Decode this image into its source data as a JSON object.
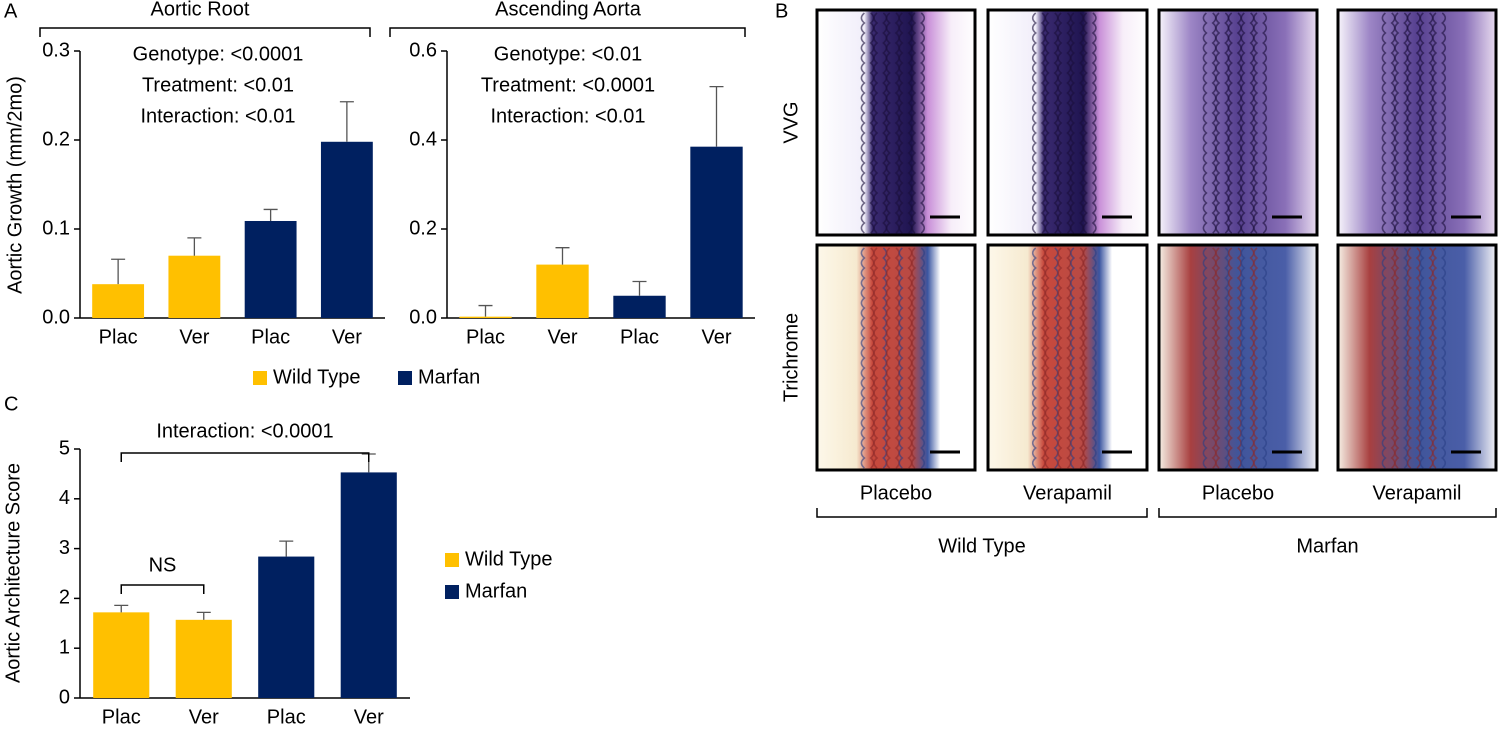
{
  "panel_labels": [
    "A",
    "B",
    "C"
  ],
  "chart_data": [
    {
      "type": "bar",
      "title": "Aortic Root",
      "ylabel": "Aortic Growth (mm/2mo)",
      "annotations": [
        "Genotype: <0.0001",
        "Treatment: <0.01",
        "Interaction: <0.01"
      ],
      "categories": [
        "Plac",
        "Ver",
        "Plac",
        "Ver"
      ],
      "series": [
        {
          "name": "Wild Type",
          "color": "#ffc000",
          "values": [
            0.038,
            0.07,
            null,
            null
          ],
          "errors": [
            0.028,
            0.02,
            null,
            null
          ]
        },
        {
          "name": "Marfan",
          "color": "#002060",
          "values": [
            null,
            null,
            0.109,
            0.198
          ],
          "errors": [
            null,
            null,
            0.013,
            0.045
          ]
        }
      ],
      "ylim": [
        0,
        0.3
      ],
      "yticks": [
        {
          "value": 0,
          "label": "0.0"
        },
        0.1,
        0.2,
        0.3
      ],
      "legend": "bottom"
    },
    {
      "type": "bar",
      "title": "Ascending Aorta",
      "annotations": [
        "Genotype: <0.01",
        "Treatment: <0.0001",
        "Interaction: <0.01"
      ],
      "categories": [
        "Plac",
        "Ver",
        "Plac",
        "Ver"
      ],
      "series": [
        {
          "color": "#ffc000",
          "values": [
            0.003,
            0.12,
            null,
            null
          ],
          "errors": [
            0.025,
            0.038,
            null,
            null
          ]
        },
        {
          "color": "#002060",
          "values": [
            null,
            null,
            0.05,
            0.385
          ],
          "errors": [
            null,
            null,
            0.032,
            0.135
          ]
        }
      ],
      "ylim": [
        0,
        0.6
      ],
      "yticks": [
        {
          "value": 0,
          "label": "0.0"
        },
        0.2,
        0.4,
        0.6
      ]
    },
    {
      "type": "bar",
      "ylabel": "Aortic Architecture Score",
      "categories": [
        "Plac",
        "Ver",
        "Plac",
        "Ver"
      ],
      "series": [
        {
          "name": "Wild Type",
          "color": "#ffc000",
          "values": [
            1.72,
            1.57,
            null,
            null
          ],
          "errors": [
            0.14,
            0.15,
            null,
            null
          ]
        },
        {
          "name": "Marfan",
          "color": "#002060",
          "values": [
            null,
            null,
            2.84,
            4.53
          ],
          "errors": [
            null,
            null,
            0.31,
            0.37
          ]
        }
      ],
      "comparisons": [
        {
          "label": "Interaction: <0.0001",
          "categories": [
            0,
            3
          ]
        },
        {
          "label": "NS",
          "categories": [
            0,
            1
          ]
        }
      ],
      "ylim": [
        0,
        5
      ],
      "yticks": [
        0,
        1,
        2,
        3,
        4,
        5
      ],
      "legend": "right"
    }
  ],
  "histology": {
    "rows": [
      "VVG",
      "Trichrome"
    ],
    "columns": [
      "Placebo",
      "Verapamil",
      "Placebo",
      "Verapamil"
    ],
    "groups": [
      "Wild Type",
      "Marfan"
    ]
  }
}
